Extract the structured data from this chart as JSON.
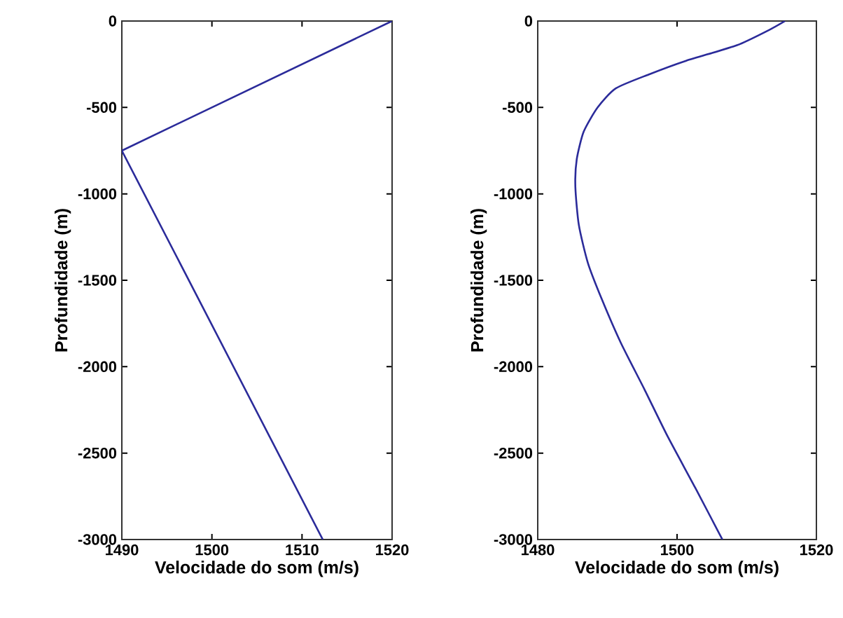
{
  "chart_data": [
    {
      "type": "line",
      "xlabel": "Velocidade do som (m/s)",
      "ylabel": "Profundidade (m)",
      "xlim": [
        1490,
        1520
      ],
      "ylim": [
        -3000,
        0
      ],
      "xticks": [
        1490,
        1500,
        1510,
        1520
      ],
      "yticks": [
        -3000,
        -2500,
        -2000,
        -1500,
        -1000,
        -500,
        0
      ],
      "series": [
        {
          "color": "#2b2b9a",
          "x": [
            1520,
            1490,
            1512.3
          ],
          "values": [
            0,
            -750,
            -3000
          ]
        }
      ]
    },
    {
      "type": "line",
      "xlabel": "Velocidade do som (m/s)",
      "ylabel": "Profundidade (m)",
      "xlim": [
        1480,
        1520
      ],
      "ylim": [
        -3000,
        0
      ],
      "xticks": [
        1480,
        1500,
        1520
      ],
      "yticks": [
        -3000,
        -2500,
        -2000,
        -1500,
        -1000,
        -500,
        0
      ],
      "series": [
        {
          "color": "#2b2b9a",
          "x": [
            1515.5,
            1513.3,
            1508.6,
            1501.3,
            1495.9,
            1491.2,
            1488.6,
            1486.6,
            1485.6,
            1485.4,
            1485.9,
            1487.2,
            1489.2,
            1491.9,
            1495.3,
            1498.6,
            1502.6,
            1506.5
          ],
          "values": [
            0,
            -50,
            -140,
            -230,
            -310,
            -390,
            -500,
            -640,
            -800,
            -960,
            -1180,
            -1400,
            -1610,
            -1860,
            -2130,
            -2400,
            -2700,
            -3000
          ]
        }
      ]
    }
  ]
}
